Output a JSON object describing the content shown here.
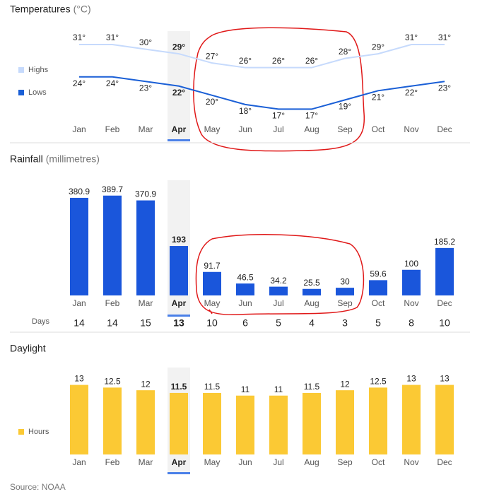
{
  "chart_data": [
    {
      "type": "line",
      "title": "Temperatures",
      "unit": "(°C)",
      "categories": [
        "Jan",
        "Feb",
        "Mar",
        "Apr",
        "May",
        "Jun",
        "Jul",
        "Aug",
        "Sep",
        "Oct",
        "Nov",
        "Dec"
      ],
      "highlight": "Apr",
      "ylim": [
        14,
        33
      ],
      "series": [
        {
          "name": "Highs",
          "color": "#c6dafc",
          "values": [
            31,
            31,
            30,
            29,
            27,
            26,
            26,
            26,
            28,
            29,
            31,
            31
          ],
          "value_labels": [
            "31°",
            "31°",
            "30°",
            "29°",
            "27°",
            "26°",
            "26°",
            "26°",
            "28°",
            "29°",
            "31°",
            "31°"
          ]
        },
        {
          "name": "Lows",
          "color": "#1a5fd6",
          "values": [
            24,
            24,
            23,
            22,
            20,
            18,
            17,
            17,
            19,
            21,
            22,
            23
          ],
          "value_labels": [
            "24°",
            "24°",
            "23°",
            "22°",
            "20°",
            "18°",
            "17°",
            "17°",
            "19°",
            "21°",
            "22°",
            "23°"
          ]
        }
      ]
    },
    {
      "type": "bar",
      "title": "Rainfall",
      "unit": "(millimetres)",
      "categories": [
        "Jan",
        "Feb",
        "Mar",
        "Apr",
        "May",
        "Jun",
        "Jul",
        "Aug",
        "Sep",
        "Oct",
        "Nov",
        "Dec"
      ],
      "highlight": "Apr",
      "values": [
        380.9,
        389.7,
        370.9,
        193,
        91.7,
        46.5,
        34.2,
        25.5,
        30,
        59.6,
        100,
        185.2
      ],
      "color": "#1a56db",
      "ylim": [
        0,
        400
      ],
      "days": {
        "label": "Days",
        "values": [
          14,
          14,
          15,
          13,
          10,
          6,
          5,
          4,
          3,
          5,
          8,
          10
        ]
      }
    },
    {
      "type": "bar",
      "title": "Daylight",
      "legend": "Hours",
      "categories": [
        "Jan",
        "Feb",
        "Mar",
        "Apr",
        "May",
        "Jun",
        "Jul",
        "Aug",
        "Sep",
        "Oct",
        "Nov",
        "Dec"
      ],
      "highlight": "Apr",
      "values": [
        13,
        12.5,
        12,
        11.5,
        11.5,
        11,
        11,
        11.5,
        12,
        12.5,
        13,
        13
      ],
      "color": "#fbc934",
      "ylim": [
        0,
        14
      ]
    }
  ],
  "source": "Source: NOAA"
}
